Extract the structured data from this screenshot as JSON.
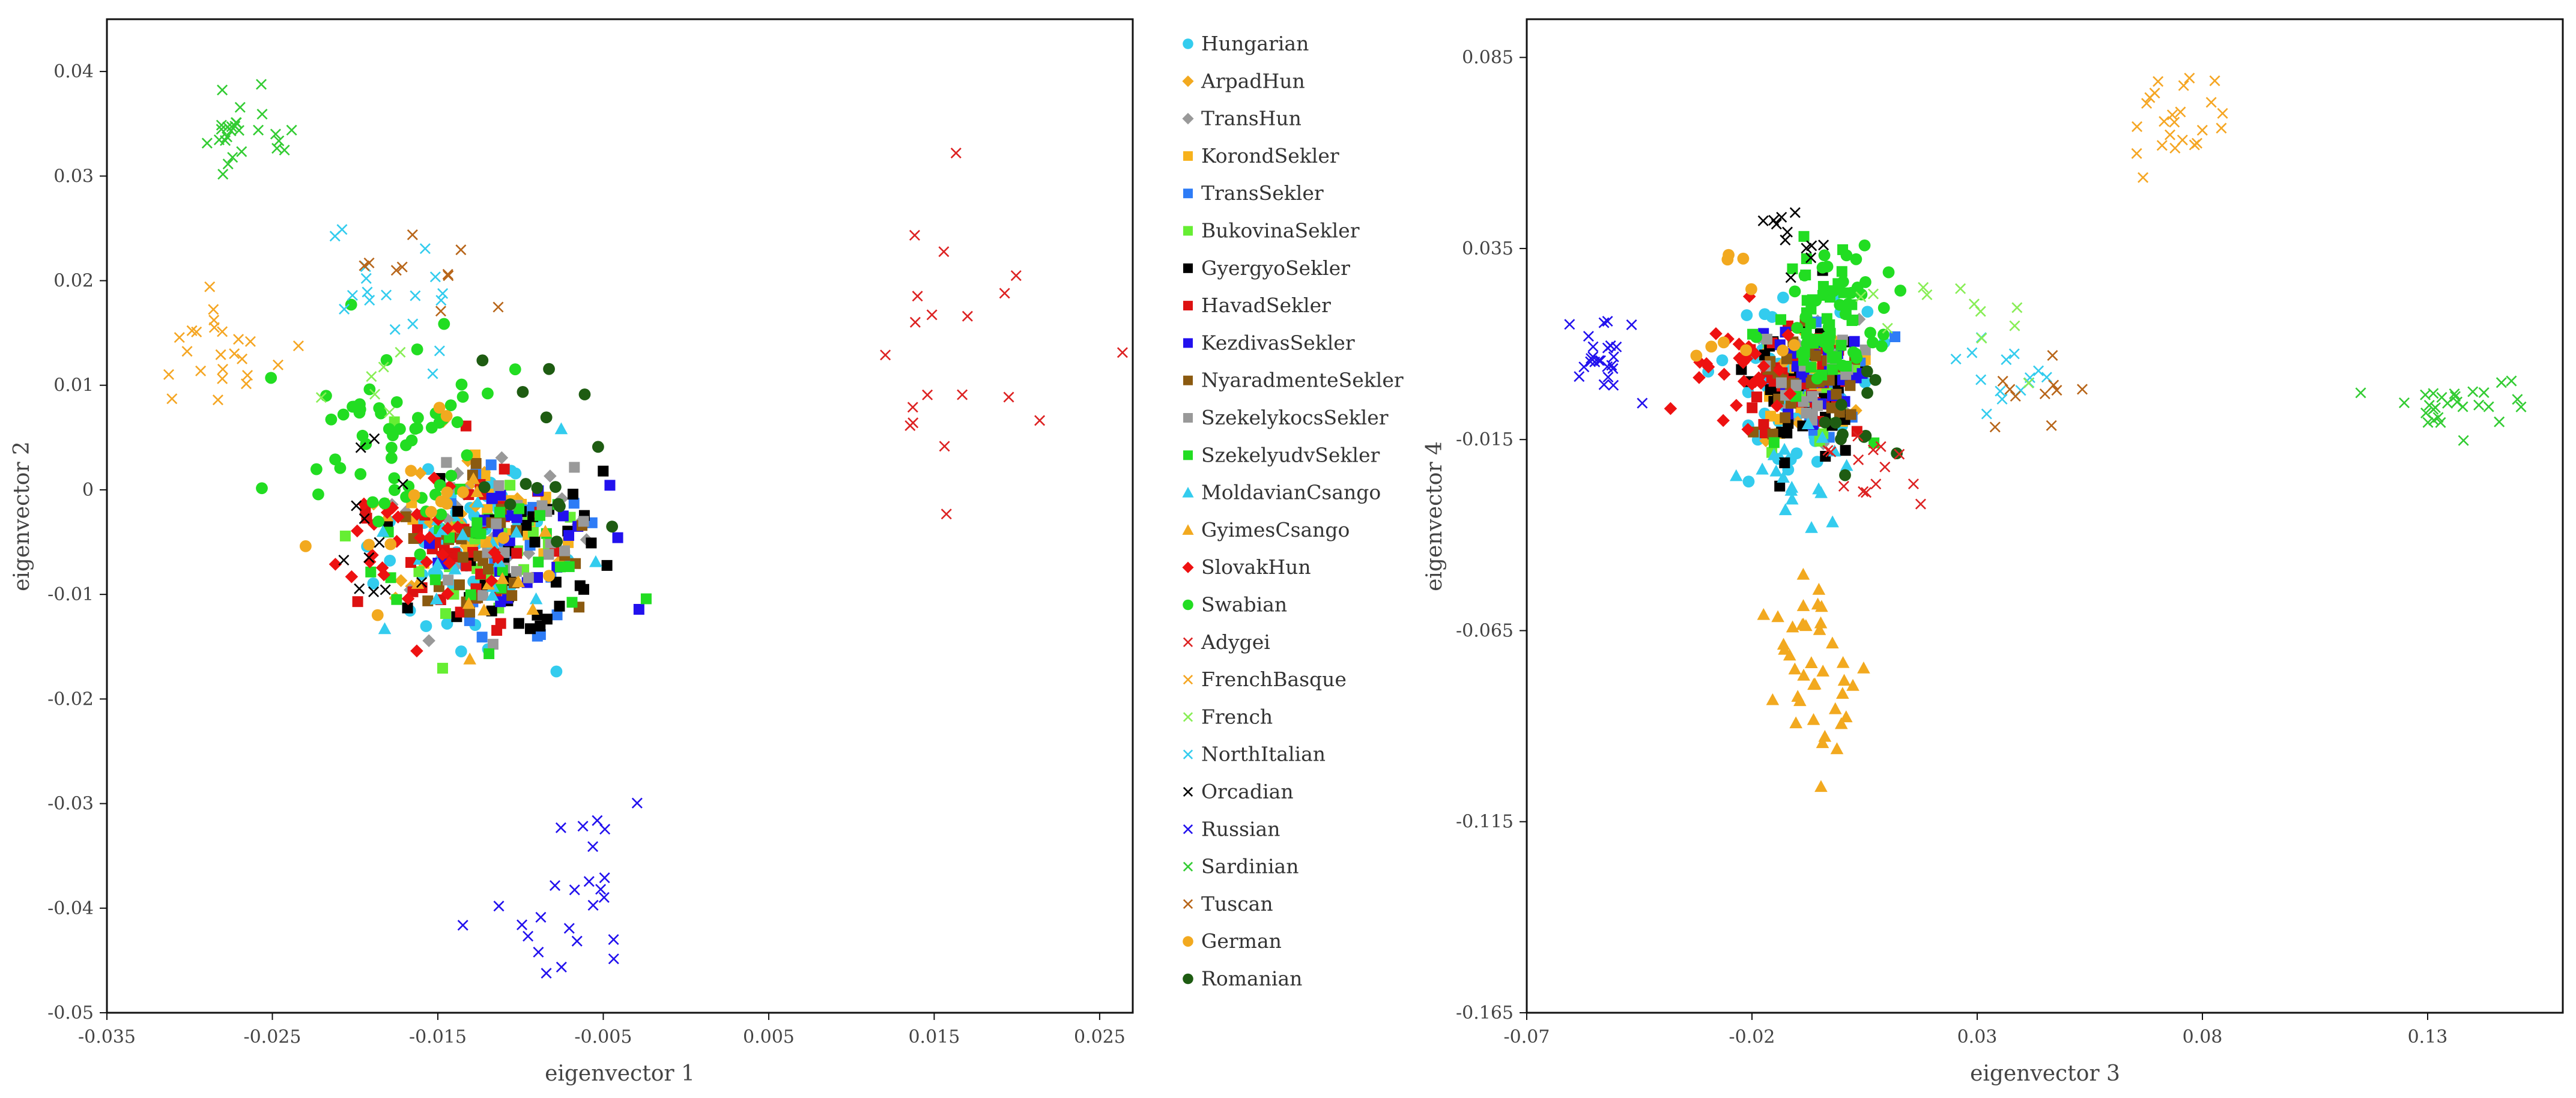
{
  "legend": [
    {
      "name": "Hungarian",
      "marker": "circle",
      "color": "#33CCEE"
    },
    {
      "name": "ArpadHun",
      "marker": "diamond",
      "color": "#F2A91F"
    },
    {
      "name": "TransHun",
      "marker": "diamond",
      "color": "#999999"
    },
    {
      "name": "KorondSekler",
      "marker": "square",
      "color": "#F7B21C"
    },
    {
      "name": "TransSekler",
      "marker": "square",
      "color": "#2E7CF6"
    },
    {
      "name": "BukovinaSekler",
      "marker": "square",
      "color": "#66EE33"
    },
    {
      "name": "GyergyoSekler",
      "marker": "square",
      "color": "#000000"
    },
    {
      "name": "HavadSekler",
      "marker": "square",
      "color": "#DD1111"
    },
    {
      "name": "KezdivasSekler",
      "marker": "square",
      "color": "#2211EE"
    },
    {
      "name": "NyaradmenteSekler",
      "marker": "square",
      "color": "#8B5A10"
    },
    {
      "name": "SzekelykocsSekler",
      "marker": "square",
      "color": "#999999"
    },
    {
      "name": "SzekelyudvSekler",
      "marker": "square",
      "color": "#22DD22"
    },
    {
      "name": "MoldavianCsango",
      "marker": "triangle",
      "color": "#33CCEE"
    },
    {
      "name": "GyimesCsango",
      "marker": "triangle",
      "color": "#F2A91F"
    },
    {
      "name": "SlovakHun",
      "marker": "diamond",
      "color": "#EE1111"
    },
    {
      "name": "Swabian",
      "marker": "circle",
      "color": "#22DD22"
    },
    {
      "name": "Adygei",
      "marker": "x",
      "color": "#DD2222"
    },
    {
      "name": "FrenchBasque",
      "marker": "x",
      "color": "#F5A623"
    },
    {
      "name": "French",
      "marker": "x",
      "color": "#88EE55"
    },
    {
      "name": "NorthItalian",
      "marker": "x",
      "color": "#33CCEE"
    },
    {
      "name": "Orcadian",
      "marker": "x",
      "color": "#000000"
    },
    {
      "name": "Russian",
      "marker": "x",
      "color": "#2211EE"
    },
    {
      "name": "Sardinian",
      "marker": "x",
      "color": "#33CC33"
    },
    {
      "name": "Tuscan",
      "marker": "x",
      "color": "#B8661A"
    },
    {
      "name": "German",
      "marker": "circle",
      "color": "#F2A91F"
    },
    {
      "name": "Romanian",
      "marker": "circle",
      "color": "#1E5C12"
    }
  ],
  "chart_data": [
    {
      "type": "scatter",
      "title": "",
      "xlabel": "eigenvector 1",
      "ylabel": "eigenvector 2",
      "xlim": [
        -0.035,
        0.027
      ],
      "ylim": [
        -0.05,
        0.045
      ],
      "xticks": [
        "-0.035",
        "-0.025",
        "-0.015",
        "-0.005",
        "0.005",
        "0.015",
        "0.025"
      ],
      "xtick_values": [
        -0.035,
        -0.025,
        -0.015,
        -0.005,
        0.005,
        0.015,
        0.025
      ],
      "yticks": [
        "0.04",
        "0.03",
        "0.02",
        "0.01",
        "0",
        "-0.01",
        "-0.02",
        "-0.03",
        "-0.04",
        "-0.05"
      ],
      "ytick_values": [
        0.04,
        0.03,
        0.02,
        0.01,
        0,
        -0.01,
        -0.02,
        -0.03,
        -0.04,
        -0.05
      ],
      "clusters": [
        {
          "name": "Hungarian",
          "cx": -0.013,
          "cy": -0.005,
          "sx": 0.0032,
          "sy": 0.0045,
          "n": 60,
          "seed": 11
        },
        {
          "name": "ArpadHun",
          "cx": -0.013,
          "cy": -0.004,
          "sx": 0.003,
          "sy": 0.004,
          "n": 25,
          "seed": 12
        },
        {
          "name": "TransHun",
          "cx": -0.012,
          "cy": -0.004,
          "sx": 0.003,
          "sy": 0.004,
          "n": 25,
          "seed": 13
        },
        {
          "name": "KorondSekler",
          "cx": -0.012,
          "cy": -0.004,
          "sx": 0.0025,
          "sy": 0.004,
          "n": 25,
          "seed": 14
        },
        {
          "name": "TransSekler",
          "cx": -0.011,
          "cy": -0.005,
          "sx": 0.003,
          "sy": 0.004,
          "n": 20,
          "seed": 15
        },
        {
          "name": "BukovinaSekler",
          "cx": -0.012,
          "cy": -0.006,
          "sx": 0.003,
          "sy": 0.004,
          "n": 25,
          "seed": 16
        },
        {
          "name": "GyergyoSekler",
          "cx": -0.01,
          "cy": -0.007,
          "sx": 0.003,
          "sy": 0.004,
          "n": 40,
          "seed": 17
        },
        {
          "name": "HavadSekler",
          "cx": -0.013,
          "cy": -0.006,
          "sx": 0.003,
          "sy": 0.004,
          "n": 40,
          "seed": 18
        },
        {
          "name": "KezdivasSekler",
          "cx": -0.01,
          "cy": -0.006,
          "sx": 0.003,
          "sy": 0.004,
          "n": 25,
          "seed": 19
        },
        {
          "name": "NyaradmenteSekler",
          "cx": -0.012,
          "cy": -0.005,
          "sx": 0.003,
          "sy": 0.004,
          "n": 30,
          "seed": 20
        },
        {
          "name": "SzekelykocsSekler",
          "cx": -0.011,
          "cy": -0.005,
          "sx": 0.003,
          "sy": 0.0035,
          "n": 20,
          "seed": 21
        },
        {
          "name": "SzekelyudvSekler",
          "cx": -0.012,
          "cy": -0.006,
          "sx": 0.003,
          "sy": 0.004,
          "n": 25,
          "seed": 22
        },
        {
          "name": "MoldavianCsango",
          "cx": -0.014,
          "cy": -0.007,
          "sx": 0.003,
          "sy": 0.005,
          "n": 18,
          "seed": 23
        },
        {
          "name": "GyimesCsango",
          "cx": -0.013,
          "cy": -0.006,
          "sx": 0.0025,
          "sy": 0.004,
          "n": 15,
          "seed": 24
        },
        {
          "name": "SlovakHun",
          "cx": -0.016,
          "cy": -0.005,
          "sx": 0.0028,
          "sy": 0.004,
          "n": 30,
          "seed": 25
        },
        {
          "name": "Swabian",
          "cx": -0.017,
          "cy": 0.005,
          "sx": 0.003,
          "sy": 0.005,
          "n": 60,
          "seed": 26
        },
        {
          "name": "German",
          "cx": -0.015,
          "cy": -0.002,
          "sx": 0.003,
          "sy": 0.005,
          "n": 15,
          "seed": 27
        },
        {
          "name": "Romanian",
          "cx": -0.009,
          "cy": 0.003,
          "sx": 0.0025,
          "sy": 0.006,
          "n": 15,
          "seed": 28
        },
        {
          "name": "Adygei",
          "cx": 0.016,
          "cy": 0.013,
          "sx": 0.0045,
          "sy": 0.01,
          "n": 20,
          "seed": 29
        },
        {
          "name": "FrenchBasque",
          "cx": -0.028,
          "cy": 0.013,
          "sx": 0.0015,
          "sy": 0.0025,
          "n": 24,
          "seed": 30
        },
        {
          "name": "NorthItalian",
          "cx": -0.017,
          "cy": 0.019,
          "sx": 0.002,
          "sy": 0.0025,
          "n": 18,
          "seed": 31
        },
        {
          "name": "Orcadian",
          "cx": -0.018,
          "cy": -0.003,
          "sx": 0.0015,
          "sy": 0.004,
          "n": 12,
          "seed": 32
        },
        {
          "name": "Russian",
          "cx": -0.006,
          "cy": -0.039,
          "sx": 0.0025,
          "sy": 0.0045,
          "n": 25,
          "seed": 33
        },
        {
          "name": "Sardinian",
          "cx": -0.027,
          "cy": 0.034,
          "sx": 0.0015,
          "sy": 0.0022,
          "n": 27,
          "seed": 34
        },
        {
          "name": "Tuscan",
          "cx": -0.015,
          "cy": 0.021,
          "sx": 0.0025,
          "sy": 0.003,
          "n": 10,
          "seed": 35
        },
        {
          "name": "French",
          "cx": -0.019,
          "cy": 0.012,
          "sx": 0.0025,
          "sy": 0.004,
          "n": 6,
          "seed": 36
        }
      ]
    },
    {
      "type": "scatter",
      "title": "",
      "xlabel": "eigenvector 3",
      "ylabel": "eigenvector 4",
      "xlim": [
        -0.07,
        0.16
      ],
      "ylim": [
        -0.165,
        0.095
      ],
      "xticks": [
        "-0.07",
        "-0.02",
        "0.03",
        "0.08",
        "0.13"
      ],
      "xtick_values": [
        -0.07,
        -0.02,
        0.03,
        0.08,
        0.13
      ],
      "yticks": [
        "0.085",
        "0.035",
        "-0.015",
        "-0.065",
        "-0.115",
        "-0.165"
      ],
      "ytick_values": [
        0.085,
        0.035,
        -0.015,
        -0.065,
        -0.115,
        -0.165
      ],
      "clusters": [
        {
          "name": "Hungarian",
          "cx": -0.01,
          "cy": 0.0,
          "sx": 0.008,
          "sy": 0.011,
          "n": 60,
          "seed": 51
        },
        {
          "name": "ArpadHun",
          "cx": -0.008,
          "cy": 0.002,
          "sx": 0.006,
          "sy": 0.008,
          "n": 25,
          "seed": 52
        },
        {
          "name": "TransHun",
          "cx": -0.006,
          "cy": 0.0,
          "sx": 0.006,
          "sy": 0.008,
          "n": 25,
          "seed": 53
        },
        {
          "name": "KorondSekler",
          "cx": -0.007,
          "cy": 0.0,
          "sx": 0.006,
          "sy": 0.008,
          "n": 20,
          "seed": 54
        },
        {
          "name": "TransSekler",
          "cx": -0.005,
          "cy": 0.0,
          "sx": 0.006,
          "sy": 0.008,
          "n": 20,
          "seed": 55
        },
        {
          "name": "BukovinaSekler",
          "cx": -0.006,
          "cy": 0.0,
          "sx": 0.006,
          "sy": 0.008,
          "n": 25,
          "seed": 56
        },
        {
          "name": "GyergyoSekler",
          "cx": -0.008,
          "cy": -0.002,
          "sx": 0.006,
          "sy": 0.01,
          "n": 40,
          "seed": 57
        },
        {
          "name": "HavadSekler",
          "cx": -0.007,
          "cy": 0.001,
          "sx": 0.006,
          "sy": 0.008,
          "n": 40,
          "seed": 58
        },
        {
          "name": "KezdivasSekler",
          "cx": -0.007,
          "cy": 0.001,
          "sx": 0.006,
          "sy": 0.008,
          "n": 25,
          "seed": 59
        },
        {
          "name": "NyaradmenteSekler",
          "cx": -0.008,
          "cy": -0.002,
          "sx": 0.006,
          "sy": 0.008,
          "n": 30,
          "seed": 60
        },
        {
          "name": "SzekelykocsSekler",
          "cx": -0.007,
          "cy": 0.0,
          "sx": 0.006,
          "sy": 0.008,
          "n": 20,
          "seed": 61
        },
        {
          "name": "SzekelyudvSekler",
          "cx": -0.005,
          "cy": 0.013,
          "sx": 0.006,
          "sy": 0.012,
          "n": 45,
          "seed": 62
        },
        {
          "name": "MoldavianCsango",
          "cx": -0.01,
          "cy": -0.025,
          "sx": 0.007,
          "sy": 0.006,
          "n": 18,
          "seed": 63
        },
        {
          "name": "GyimesCsango",
          "cx": -0.007,
          "cy": -0.075,
          "sx": 0.005,
          "sy": 0.016,
          "n": 40,
          "seed": 64
        },
        {
          "name": "SlovakHun",
          "cx": -0.022,
          "cy": 0.003,
          "sx": 0.006,
          "sy": 0.007,
          "n": 30,
          "seed": 65
        },
        {
          "name": "Swabian",
          "cx": -0.002,
          "cy": 0.02,
          "sx": 0.006,
          "sy": 0.01,
          "n": 40,
          "seed": 66
        },
        {
          "name": "German",
          "cx": -0.02,
          "cy": 0.015,
          "sx": 0.008,
          "sy": 0.012,
          "n": 10,
          "seed": 67
        },
        {
          "name": "Romanian",
          "cx": 0.003,
          "cy": -0.012,
          "sx": 0.006,
          "sy": 0.008,
          "n": 12,
          "seed": 68
        },
        {
          "name": "Adygei",
          "cx": 0.008,
          "cy": -0.023,
          "sx": 0.006,
          "sy": 0.005,
          "n": 14,
          "seed": 69
        },
        {
          "name": "FrenchBasque",
          "cx": 0.075,
          "cy": 0.07,
          "sx": 0.006,
          "sy": 0.007,
          "n": 24,
          "seed": 70
        },
        {
          "name": "NorthItalian",
          "cx": 0.037,
          "cy": 0.0,
          "sx": 0.005,
          "sy": 0.005,
          "n": 14,
          "seed": 71
        },
        {
          "name": "Orcadian",
          "cx": -0.012,
          "cy": 0.037,
          "sx": 0.004,
          "sy": 0.006,
          "n": 12,
          "seed": 72
        },
        {
          "name": "Russian",
          "cx": -0.052,
          "cy": 0.007,
          "sx": 0.004,
          "sy": 0.006,
          "n": 25,
          "seed": 73
        },
        {
          "name": "Sardinian",
          "cx": 0.137,
          "cy": -0.006,
          "sx": 0.007,
          "sy": 0.004,
          "n": 28,
          "seed": 74
        },
        {
          "name": "Tuscan",
          "cx": 0.042,
          "cy": -0.006,
          "sx": 0.006,
          "sy": 0.006,
          "n": 10,
          "seed": 75
        },
        {
          "name": "French",
          "cx": 0.025,
          "cy": 0.012,
          "sx": 0.01,
          "sy": 0.01,
          "n": 12,
          "seed": 76
        }
      ]
    }
  ]
}
